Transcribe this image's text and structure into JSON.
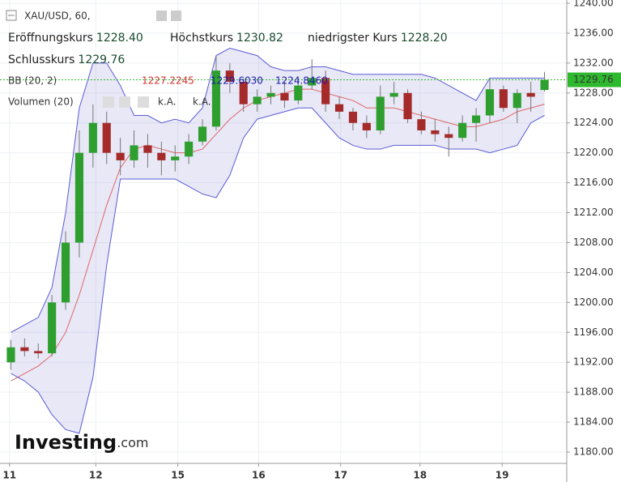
{
  "chart_data": {
    "type": "candlestick",
    "title": "XAU/USD, 60,",
    "header": [
      {
        "label": "Eröffnungskurs",
        "value": "1228.40"
      },
      {
        "label": "Höchstkurs",
        "value": "1230.82"
      },
      {
        "label": "niedrigster Kurs",
        "value": "1228.20"
      },
      {
        "label": "Schlusskurs",
        "value": "1229.76"
      }
    ],
    "bb_label": "BB (20, 2)",
    "bb_values": [
      {
        "text": "1227.2245",
        "color": "#d32f2f"
      },
      {
        "text": "1229.6030",
        "color": "#1a1aa8"
      },
      {
        "text": "1224.8460",
        "color": "#1a1aa8"
      }
    ],
    "volume_label": "Volumen (20)",
    "volume_values": [
      "k.A.",
      "k.A."
    ],
    "watermark": [
      "Investing",
      ".com"
    ],
    "up_color": "#2e9e2e",
    "down_color": "#a52a2a",
    "open": [
      1192,
      1194,
      1193.5,
      1193.2,
      1200,
      1208,
      1220,
      1224,
      1220,
      1219,
      1221,
      1220,
      1219,
      1219.5,
      1221.5,
      1223.5,
      1231,
      1229.5,
      1226.5,
      1227.5,
      1228,
      1227,
      1229,
      1230,
      1226.5,
      1225.5,
      1224,
      1223,
      1227.5,
      1228,
      1224.5,
      1223,
      1222.5,
      1222,
      1224,
      1225,
      1228.5,
      1226,
      1228,
      1228.4
    ],
    "high": [
      1195,
      1195.2,
      1194.5,
      1201,
      1209.5,
      1223,
      1226.5,
      1225.5,
      1222,
      1223,
      1222.5,
      1221.5,
      1221,
      1222.5,
      1224.5,
      1233,
      1232,
      1230,
      1228.5,
      1229,
      1229.5,
      1230,
      1232.5,
      1231,
      1227.5,
      1226,
      1225,
      1229,
      1229.5,
      1228.5,
      1225.5,
      1224.5,
      1223.5,
      1225,
      1226,
      1230,
      1229,
      1228.5,
      1229.5,
      1230.82
    ],
    "low": [
      1191,
      1192.8,
      1192.5,
      1192.8,
      1199,
      1206,
      1218,
      1218.5,
      1217,
      1218,
      1218,
      1217,
      1217.5,
      1218.5,
      1221,
      1223,
      1228,
      1225.5,
      1225.5,
      1226.5,
      1226,
      1226.5,
      1228.5,
      1225.5,
      1224.5,
      1223,
      1222,
      1222.5,
      1226.5,
      1224,
      1222.5,
      1221.5,
      1219.5,
      1221.5,
      1221.5,
      1224,
      1225.5,
      1224,
      1225.5,
      1228.2
    ],
    "close": [
      1194,
      1193.5,
      1193.2,
      1200,
      1208,
      1220,
      1224,
      1220,
      1219,
      1221,
      1220,
      1219,
      1219.5,
      1221.5,
      1223.5,
      1231,
      1229.5,
      1226.5,
      1227.5,
      1228,
      1227,
      1229,
      1230,
      1226.5,
      1225.5,
      1224,
      1223,
      1227.5,
      1228,
      1224.5,
      1223,
      1222.5,
      1222,
      1224,
      1225,
      1228.5,
      1226,
      1228,
      1227.5,
      1229.76
    ],
    "bands": [
      {
        "name": "upper",
        "color": "#5b5bd6",
        "values": [
          1196,
          1197,
          1198,
          1202,
          1212,
          1226,
          1232,
          1232,
          1229,
          1225,
          1225,
          1224,
          1224.5,
          1224,
          1226,
          1233,
          1234,
          1233.5,
          1233,
          1231.5,
          1231,
          1231,
          1231.5,
          1231.5,
          1231,
          1230.5,
          1230.5,
          1230.5,
          1230.5,
          1230.5,
          1230.5,
          1230,
          1229,
          1228,
          1227,
          1230,
          1230,
          1230,
          1230,
          1230
        ]
      },
      {
        "name": "middle",
        "color": "#e06666",
        "values": [
          1189.5,
          1190.5,
          1191.5,
          1193,
          1196,
          1201,
          1207,
          1213,
          1218,
          1220.5,
          1221,
          1220.5,
          1220,
          1220,
          1220.5,
          1222.5,
          1224.5,
          1226,
          1227,
          1227.5,
          1228,
          1228.5,
          1228.5,
          1228,
          1227.5,
          1227,
          1226,
          1226,
          1226,
          1225.5,
          1225,
          1224.5,
          1224,
          1223.5,
          1223.5,
          1224,
          1224.5,
          1225.5,
          1226,
          1226.5
        ]
      },
      {
        "name": "lower",
        "color": "#5b5bd6",
        "values": [
          1190.5,
          1189.5,
          1188,
          1185,
          1183,
          1182.5,
          1190,
          1205,
          1216.5,
          1216.5,
          1216.5,
          1216.5,
          1216.5,
          1215.5,
          1214.5,
          1214,
          1217,
          1222,
          1224.5,
          1225,
          1225.5,
          1226,
          1226,
          1224,
          1222,
          1221,
          1220.5,
          1220.5,
          1221,
          1221,
          1221,
          1221,
          1220.5,
          1220.5,
          1220.5,
          1220,
          1220.5,
          1221,
          1224,
          1225
        ]
      }
    ],
    "band_fill": "rgba(140,140,215,0.2)",
    "last_color": "#2eb82e",
    "xlim": [
      -0.5,
      39.5
    ],
    "xticks": [
      {
        "value": -0.1,
        "label": "11"
      },
      {
        "value": 6.2,
        "label": "12"
      },
      {
        "value": 12.2,
        "label": "15"
      },
      {
        "value": 18.1,
        "label": "16"
      },
      {
        "value": 24.1,
        "label": "17"
      },
      {
        "value": 29.9,
        "label": "18"
      },
      {
        "value": 35.9,
        "label": "19"
      }
    ],
    "ylim": [
      1180,
      1240
    ],
    "yticks": [
      {
        "value": 1180,
        "label": "1180.00"
      },
      {
        "value": 1184,
        "label": "1184.00"
      },
      {
        "value": 1188,
        "label": "1188.00"
      },
      {
        "value": 1192,
        "label": "1192.00"
      },
      {
        "value": 1196,
        "label": "1196.00"
      },
      {
        "value": 1200,
        "label": "1200.00"
      },
      {
        "value": 1204,
        "label": "1204.00"
      },
      {
        "value": 1208,
        "label": "1208.00"
      },
      {
        "value": 1212,
        "label": "1212.00"
      },
      {
        "value": 1216,
        "label": "1216.00"
      },
      {
        "value": 1220,
        "label": "1220.00"
      },
      {
        "value": 1224,
        "label": "1224.00"
      },
      {
        "value": 1228,
        "label": "1228.00"
      },
      {
        "value": 1232,
        "label": "1232.00"
      },
      {
        "value": 1236,
        "label": "1236.00"
      },
      {
        "value": 1240,
        "label": "1240.00"
      }
    ],
    "grid": true
  }
}
